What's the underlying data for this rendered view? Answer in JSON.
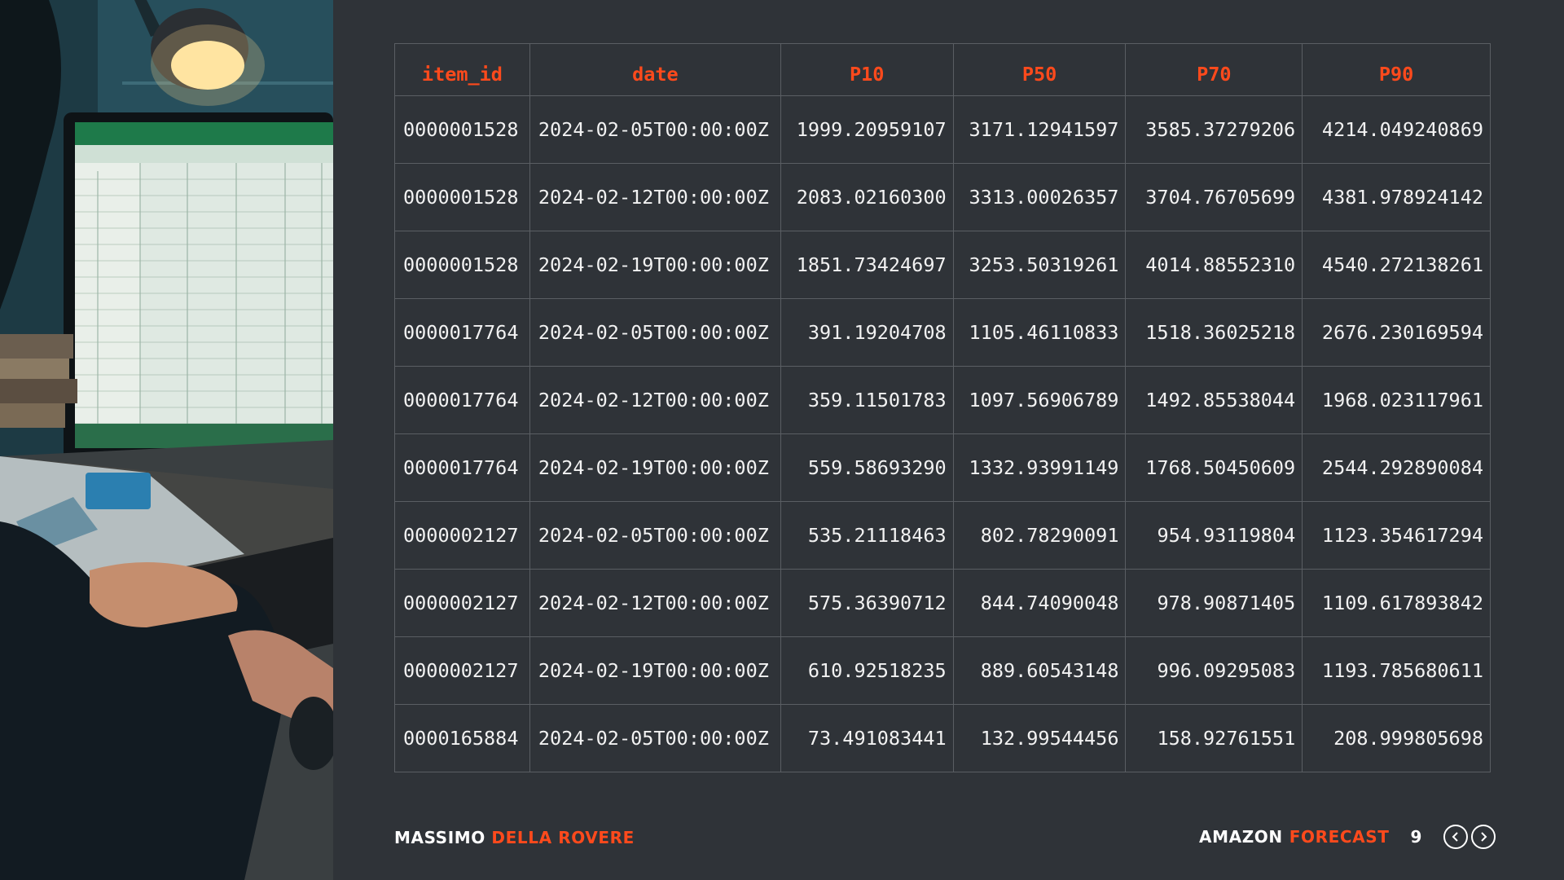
{
  "table": {
    "headers": [
      "item_id",
      "date",
      "P10",
      "P50",
      "P70",
      "P90"
    ],
    "rows": [
      [
        "0000001528",
        "2024-02-05T00:00:00Z",
        "1999.20959107",
        "3171.12941597",
        "3585.37279206",
        "4214.049240869"
      ],
      [
        "0000001528",
        "2024-02-12T00:00:00Z",
        "2083.02160300",
        "3313.00026357",
        "3704.76705699",
        "4381.978924142"
      ],
      [
        "0000001528",
        "2024-02-19T00:00:00Z",
        "1851.73424697",
        "3253.50319261",
        "4014.88552310",
        "4540.272138261"
      ],
      [
        "0000017764",
        "2024-02-05T00:00:00Z",
        "391.19204708",
        "1105.46110833",
        "1518.36025218",
        "2676.230169594"
      ],
      [
        "0000017764",
        "2024-02-12T00:00:00Z",
        "359.11501783",
        "1097.56906789",
        "1492.85538044",
        "1968.023117961"
      ],
      [
        "0000017764",
        "2024-02-19T00:00:00Z",
        "559.58693290",
        "1332.93991149",
        "1768.50450609",
        "2544.292890084"
      ],
      [
        "0000002127",
        "2024-02-05T00:00:00Z",
        "535.21118463",
        "802.78290091",
        "954.93119804",
        "1123.354617294"
      ],
      [
        "0000002127",
        "2024-02-12T00:00:00Z",
        "575.36390712",
        "844.74090048",
        "978.90871405",
        "1109.617893842"
      ],
      [
        "0000002127",
        "2024-02-19T00:00:00Z",
        "610.92518235",
        "889.60543148",
        "996.09295083",
        "1193.785680611"
      ],
      [
        "0000165884",
        "2024-02-05T00:00:00Z",
        "73.491083441",
        "132.99544456",
        "158.92761551",
        "208.999805698"
      ]
    ]
  },
  "footer": {
    "author_first": "MASSIMO",
    "author_last": "DELLA ROVERE",
    "brand_first": "AMAZON",
    "brand_second": "FORECAST",
    "page_number": "9"
  },
  "icons": {
    "prev": "chevron-left-circle-icon",
    "next": "chevron-right-circle-icon"
  },
  "colors": {
    "background": "#2f3338",
    "accent": "#ff4a1c",
    "text": "#f2f2f2",
    "grid": "#5a5e63"
  }
}
